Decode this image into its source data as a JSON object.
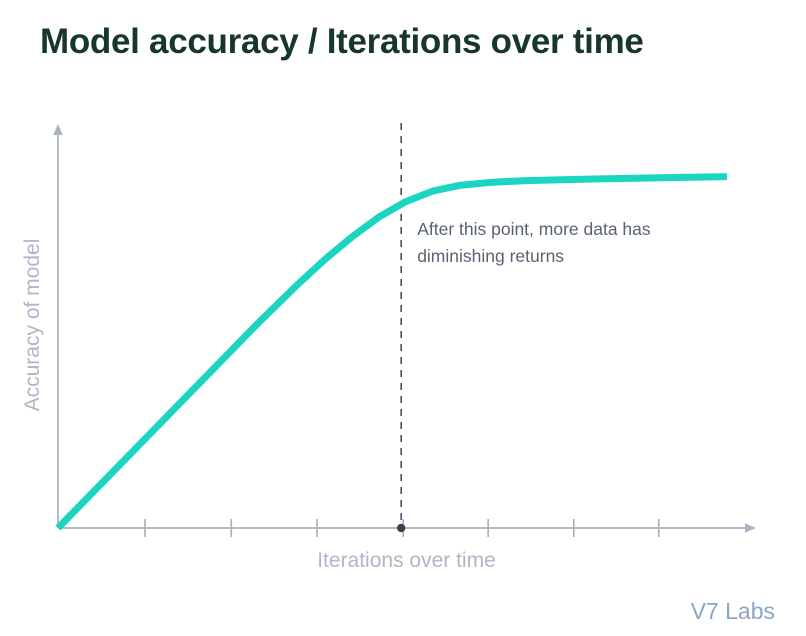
{
  "page": {
    "title": "Model accuracy / Iterations over time",
    "watermark": "V7 Labs"
  },
  "chart_data": {
    "type": "line",
    "title": "Model accuracy / Iterations over time",
    "xlabel": "Iterations over time",
    "ylabel": "Accuracy of model",
    "x_range": [
      0,
      10
    ],
    "y_range": [
      0,
      1
    ],
    "x_tick_labels": [],
    "y_tick_labels": [],
    "grid": false,
    "legend": "none",
    "x_ticks": [
      1.3,
      2.59,
      3.87,
      5.16,
      6.43,
      7.71,
      8.98
    ],
    "axis_color": "#a9b3c2",
    "label_color": "#aeb7c5",
    "series": [
      {
        "name": "model-accuracy-curve",
        "color": "#1bd5c1",
        "points": [
          [
            0,
            0
          ],
          [
            0.6,
            0.102
          ],
          [
            1.2,
            0.204
          ],
          [
            1.8,
            0.306
          ],
          [
            2.4,
            0.408
          ],
          [
            3.0,
            0.51
          ],
          [
            3.6,
            0.607
          ],
          [
            4.0,
            0.668
          ],
          [
            4.4,
            0.723
          ],
          [
            4.8,
            0.772
          ],
          [
            5.2,
            0.81
          ],
          [
            5.6,
            0.836
          ],
          [
            6.0,
            0.85
          ],
          [
            6.5,
            0.858
          ],
          [
            7.0,
            0.862
          ],
          [
            8.0,
            0.866
          ],
          [
            9.0,
            0.869
          ],
          [
            10.0,
            0.872
          ]
        ]
      }
    ],
    "reference_line": {
      "x": 5.13,
      "style": "dashed",
      "color": "#47505e",
      "marker": "dot-on-axis",
      "marker_color": "#3a424e"
    },
    "annotation": {
      "text": "After this point, more data has diminishing returns",
      "line1": "After this point, more data has",
      "line2": "diminishing returns",
      "anchor_x": 5.13,
      "color": "#5a6372"
    }
  },
  "colors": {
    "title": "#17362c",
    "curve": "#1bd5c1",
    "watermark": "#8ca6c8"
  }
}
